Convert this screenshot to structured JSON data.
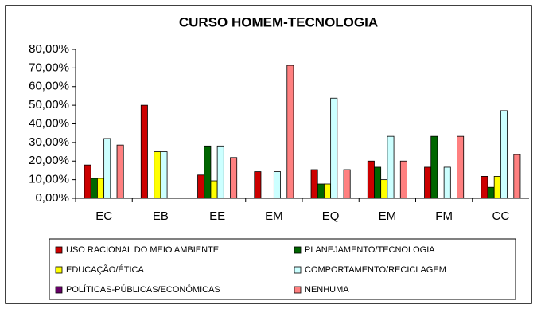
{
  "chart_data": {
    "type": "bar",
    "title": "CURSO HOMEM-TECNOLOGIA",
    "categories": [
      "EC",
      "EB",
      "EE",
      "EM",
      "EQ",
      "EM",
      "FM",
      "CC"
    ],
    "series": [
      {
        "name": "USO RACIONAL DO MEIO AMBIENTE",
        "color": "#cc0000",
        "values": [
          17.9,
          50,
          12.5,
          14.3,
          15.4,
          20,
          16.7,
          11.8
        ]
      },
      {
        "name": "PLANEJAMENTO/TECNOLOGIA",
        "color": "#006600",
        "values": [
          10.7,
          0,
          28.1,
          0,
          7.7,
          16.7,
          33.3,
          5.9
        ]
      },
      {
        "name": "EDUCAÇÃO/ÉTICA",
        "color": "#ffff00",
        "values": [
          10.7,
          25,
          9.4,
          0,
          7.7,
          10,
          0,
          11.8
        ]
      },
      {
        "name": "COMPORTAMENTO/RECICLAGEM",
        "color": "#ccffff",
        "values": [
          32.1,
          25,
          28.1,
          14.3,
          53.8,
          33.3,
          16.7,
          47.1
        ]
      },
      {
        "name": "POLÍTICAS-PÚBLICAS/ECONÔMICAS",
        "color": "#660066",
        "values": [
          0,
          0,
          0,
          0,
          0,
          0,
          0,
          0
        ]
      },
      {
        "name": "NENHUMA",
        "color": "#ff8080",
        "values": [
          28.6,
          0,
          21.9,
          71.4,
          15.4,
          20,
          33.3,
          23.5
        ]
      }
    ],
    "ylim": [
      0,
      80
    ],
    "yticks": [
      {
        "value": 0,
        "label": "0,00%"
      },
      {
        "value": 10,
        "label": "10,00%"
      },
      {
        "value": 20,
        "label": "20,00%"
      },
      {
        "value": 30,
        "label": "30,00%"
      },
      {
        "value": 40,
        "label": "40,00%"
      },
      {
        "value": 50,
        "label": "50,00%"
      },
      {
        "value": 60,
        "label": "60,00%"
      },
      {
        "value": 70,
        "label": "70,00%"
      },
      {
        "value": 80,
        "label": "80,00%"
      }
    ],
    "grid": false
  }
}
